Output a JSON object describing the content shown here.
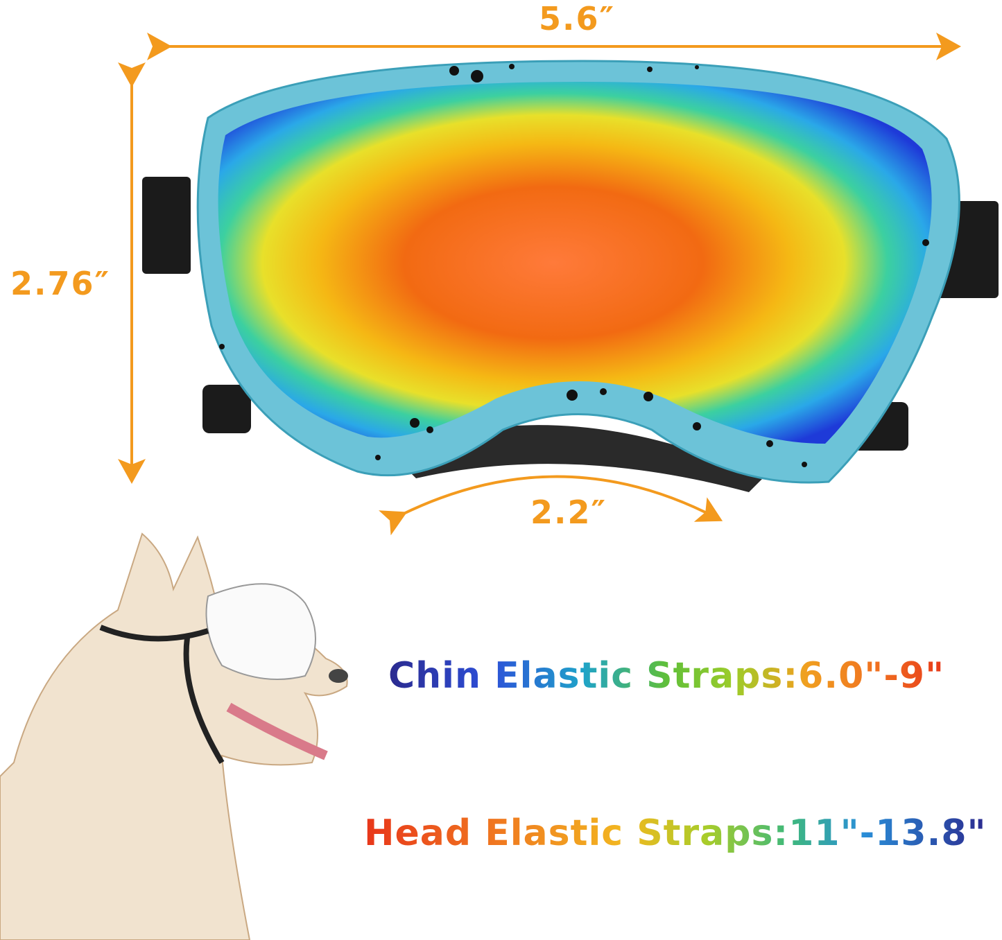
{
  "dimensions": {
    "width": "5.6″",
    "height": "2.76″",
    "nose_bridge": "2.2″"
  },
  "straps": {
    "chin": "Chin Elastic Straps:6.0\"-9\"",
    "head": "Head Elastic Straps:11\"-13.8\""
  },
  "colors": {
    "dimension_orange": "#f39a1e",
    "frame_teal": "#6cc3d8",
    "strap_black": "#1b1b1b"
  }
}
